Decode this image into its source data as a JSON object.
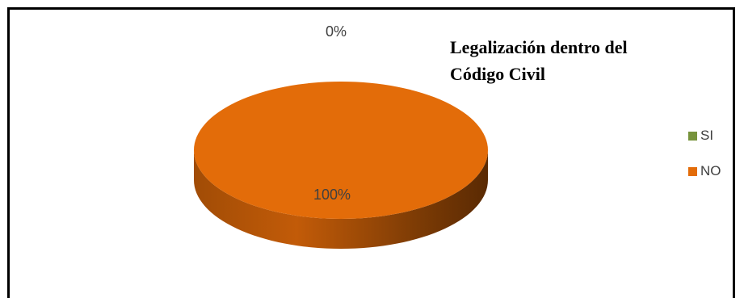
{
  "chart_data": {
    "type": "pie",
    "title_lines": [
      "Legalización dentro del",
      "Código Civil"
    ],
    "categories": [
      "SI",
      "NO"
    ],
    "values": [
      0,
      100
    ],
    "data_labels": [
      "0%",
      "100%"
    ],
    "colors": [
      "#77933C",
      "#E36C09"
    ],
    "legend_position": "right",
    "style": "3d"
  }
}
